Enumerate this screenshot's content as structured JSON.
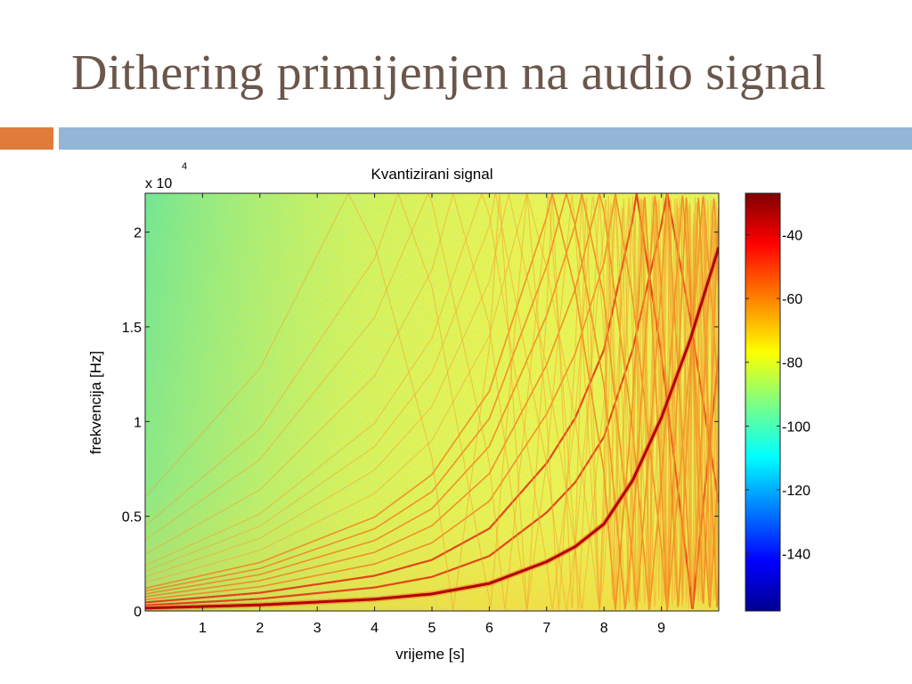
{
  "slide": {
    "title": "Dithering primijenjen na audio signal"
  },
  "colors": {
    "title_text": "#6b564b",
    "accent_orange": "#e07b3c",
    "accent_blue": "#93b5d6",
    "colormap": [
      "#00008f",
      "#0000ff",
      "#00ffff",
      "#80ff80",
      "#ffff00",
      "#ff8000",
      "#ff0000",
      "#800000"
    ]
  },
  "chart_data": {
    "type": "heatmap",
    "title": "Kvantizirani signal",
    "xlabel": "vrijeme [s]",
    "ylabel": "frekvencija [Hz]",
    "y_exponent_label": "x 10",
    "y_exponent_power": "4",
    "xlim": [
      0,
      10
    ],
    "ylim": [
      0,
      22050
    ],
    "x_ticks": [
      1,
      2,
      3,
      4,
      5,
      6,
      7,
      8,
      9
    ],
    "y_ticks": [
      {
        "value": 0,
        "label": "0"
      },
      {
        "value": 5000,
        "label": "0.5"
      },
      {
        "value": 10000,
        "label": "1"
      },
      {
        "value": 15000,
        "label": "1.5"
      },
      {
        "value": 20000,
        "label": "2"
      }
    ],
    "colorbar": {
      "range": [
        -158,
        -27
      ],
      "ticks": [
        -40,
        -60,
        -80,
        -100,
        -120,
        -140
      ]
    },
    "background_level_db": -85,
    "fundamental": {
      "description": "exponential sweep",
      "points": [
        [
          0,
          150
        ],
        [
          2,
          320
        ],
        [
          4,
          620
        ],
        [
          5,
          900
        ],
        [
          6,
          1450
        ],
        [
          7,
          2600
        ],
        [
          7.5,
          3400
        ],
        [
          8,
          4600
        ],
        [
          8.5,
          6900
        ],
        [
          9,
          10200
        ],
        [
          9.5,
          14300
        ],
        [
          10,
          19200
        ]
      ],
      "level_db": -30
    },
    "harmonics": [
      2,
      3,
      4,
      5,
      6,
      7,
      8,
      10,
      12,
      14,
      16,
      20,
      25,
      30,
      40
    ],
    "harmonic_level_db": -55
  }
}
